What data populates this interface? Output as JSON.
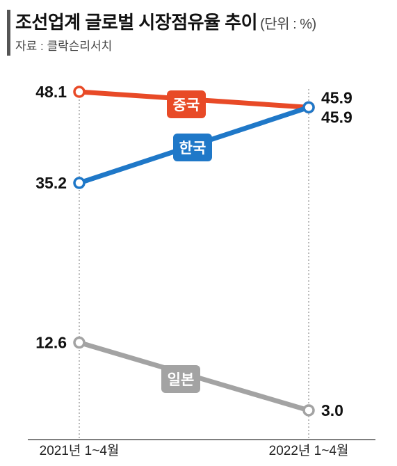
{
  "title": "조선업계 글로벌 시장점유율 추이",
  "unit": "(단위 : %)",
  "source": "자료 : 클락슨리서치",
  "chart_data": {
    "type": "line",
    "title": "조선업계 글로벌 시장점유율 추이",
    "unit": "%",
    "x": [
      "2021년 1~4월",
      "2022년 1~4월"
    ],
    "ylim": [
      0,
      50
    ],
    "grid": false,
    "series": [
      {
        "name": "중국",
        "values": [
          48.1,
          45.9
        ],
        "labels": [
          "48.1",
          "45.9"
        ],
        "color": "#e84a27"
      },
      {
        "name": "한국",
        "values": [
          35.2,
          45.9
        ],
        "labels": [
          "35.2",
          "45.9"
        ],
        "color": "#1f78c8"
      },
      {
        "name": "일본",
        "values": [
          12.6,
          3.0
        ],
        "labels": [
          "12.6",
          "3.0"
        ],
        "color": "#a3a3a3"
      }
    ]
  }
}
